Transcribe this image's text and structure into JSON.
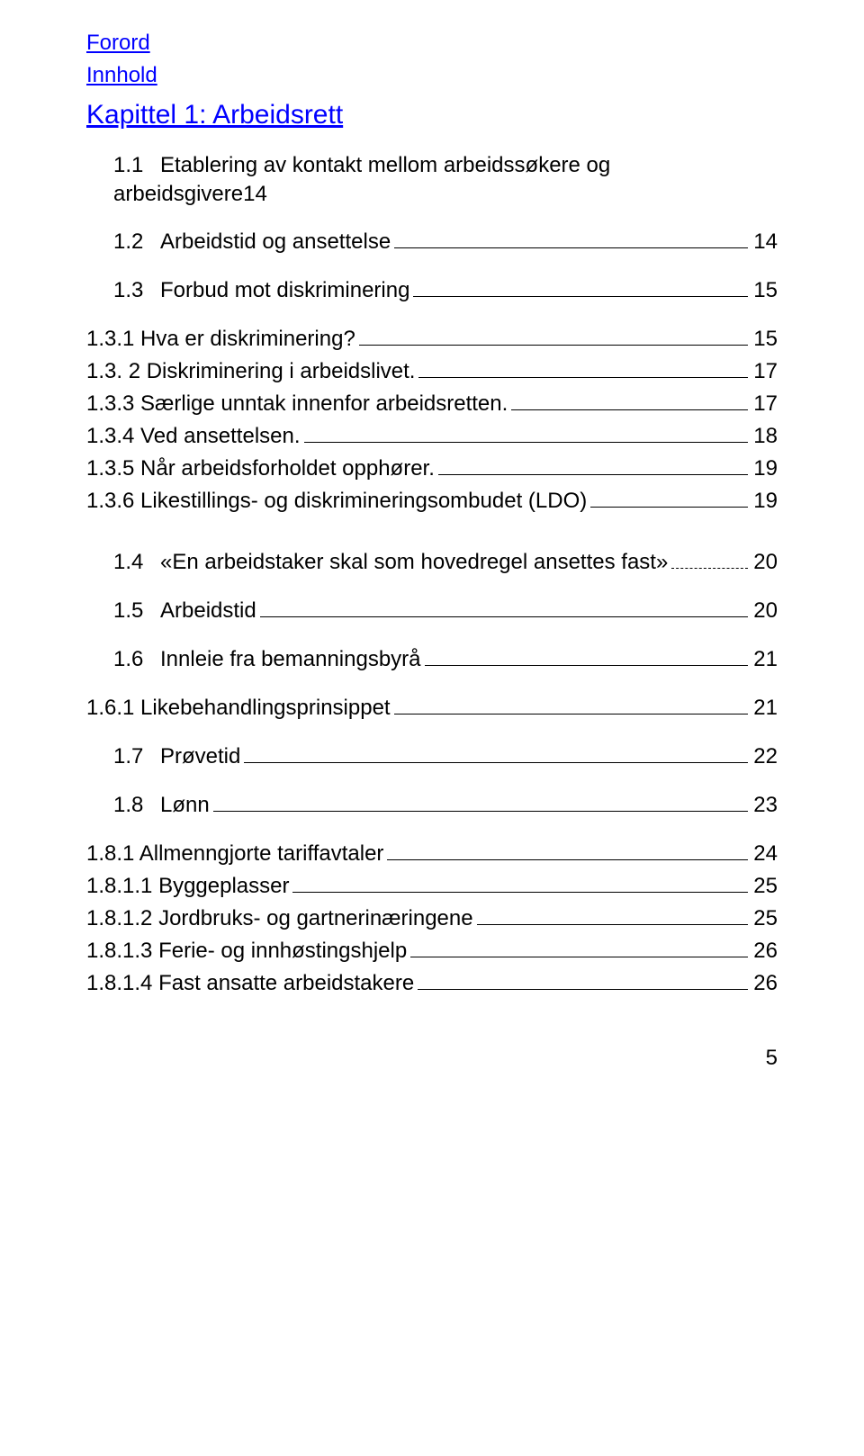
{
  "colors": {
    "link": "#0000ff",
    "text": "#000000",
    "background": "#ffffff"
  },
  "typography": {
    "body_fontsize": 24,
    "chapter_fontsize": 30,
    "font_family": "Candara"
  },
  "front": {
    "forord": "Forord",
    "innhold": "Innhold",
    "chapter": "Kapittel 1: Arbeidsrett"
  },
  "toc": [
    {
      "num": "1.1",
      "label_line1": "Etablering av kontakt mellom arbeidssøkere og",
      "label_line2": "arbeidsgivere",
      "page": "14",
      "level": 1,
      "wrap": true
    },
    {
      "num": "1.2",
      "label": "Arbeidstid og ansettelse",
      "page": "14",
      "level": 1
    },
    {
      "num": "1.3",
      "label": "Forbud mot diskriminering",
      "page": "15",
      "level": 1
    },
    {
      "num": "",
      "label": "1.3.1 Hva er diskriminering?",
      "page": "15",
      "level": 2
    },
    {
      "num": "",
      "label": "1.3. 2 Diskriminering i arbeidslivet.",
      "page": "17",
      "level": 2
    },
    {
      "num": "",
      "label": "1.3.3 Særlige unntak innenfor arbeidsretten.",
      "page": "17",
      "level": 2
    },
    {
      "num": "",
      "label": "1.3.4 Ved ansettelsen.",
      "page": "18",
      "level": 2
    },
    {
      "num": "",
      "label": "1.3.5 Når arbeidsforholdet opphører.",
      "page": "19",
      "level": 2
    },
    {
      "num": "",
      "label": "1.3.6 Likestillings- og diskrimineringsombudet (LDO)",
      "page": "19",
      "level": 2
    },
    {
      "num": "1.4",
      "label": "«En arbeidstaker skal som hovedregel ansettes fast»",
      "page": "20",
      "level": 1,
      "leader_style": "light"
    },
    {
      "num": "1.5",
      "label": "Arbeidstid",
      "page": "20",
      "level": 1
    },
    {
      "num": "1.6",
      "label": "Innleie fra bemanningsbyrå",
      "page": "21",
      "level": 1
    },
    {
      "num": "",
      "label": "1.6.1 Likebehandlingsprinsippet",
      "page": "21",
      "level": 2
    },
    {
      "num": "1.7",
      "label": "Prøvetid",
      "page": "22",
      "level": 1
    },
    {
      "num": "1.8",
      "label": "Lønn",
      "page": "23",
      "level": 1
    },
    {
      "num": "",
      "label": "1.8.1 Allmenngjorte tariffavtaler",
      "page": "24",
      "level": 2
    },
    {
      "num": "",
      "label": "1.8.1.1 Byggeplasser",
      "page": "25",
      "level": 2
    },
    {
      "num": "",
      "label": "1.8.1.2 Jordbruks- og gartnerinæringene",
      "page": "25",
      "level": 2
    },
    {
      "num": "",
      "label": "1.8.1.3 Ferie- og innhøstingshjelp",
      "page": "26",
      "level": 2
    },
    {
      "num": "",
      "label": "1.8.1.4 Fast ansatte arbeidstakere",
      "page": "26",
      "level": 2
    }
  ],
  "page_number": "5"
}
